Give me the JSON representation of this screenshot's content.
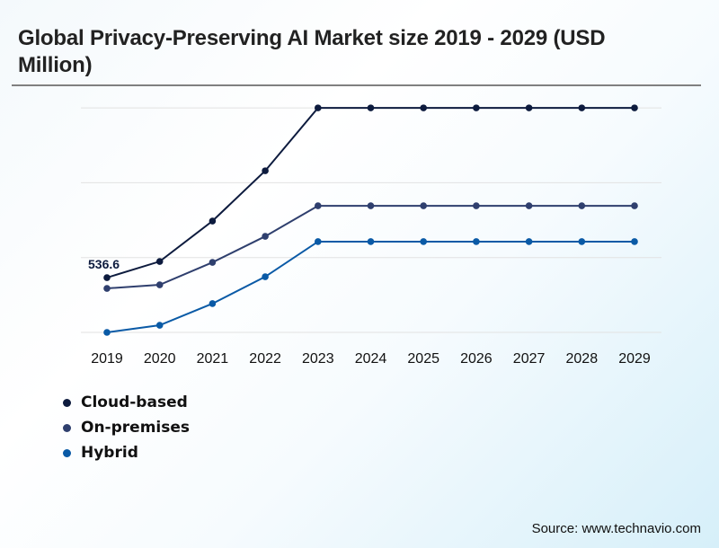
{
  "title": "Global Privacy-Preserving AI Market size 2019 - 2029 (USD Million)",
  "source": "Source: www.technavio.com",
  "chart_data": {
    "type": "line",
    "title": "Global Privacy-Preserving AI Market size 2019 - 2029 (USD Million)",
    "xlabel": "",
    "ylabel": "USD Million",
    "x": [
      "2019",
      "2020",
      "2021",
      "2022",
      "2023",
      "2024",
      "2025",
      "2026",
      "2027",
      "2028",
      "2029"
    ],
    "ylim": [
      0,
      2200
    ],
    "grid": true,
    "gridlines": [
      0,
      733,
      1466,
      2199
    ],
    "y_ticks_labeled": false,
    "legend_position": "bottom-left",
    "annotations": [
      {
        "series": "Cloud-based",
        "x": "2019",
        "text": "536.6"
      }
    ],
    "series": [
      {
        "name": "Cloud-based",
        "color": "#0d1b3e",
        "values": [
          536.6,
          695,
          1091,
          1583,
          2199,
          2199,
          2199,
          2199,
          2199,
          2199,
          2199
        ]
      },
      {
        "name": "On-premises",
        "color": "#2f3f6e",
        "values": [
          431,
          466,
          686,
          941,
          1240,
          1240,
          1240,
          1240,
          1240,
          1240,
          1240
        ]
      },
      {
        "name": "Hybrid",
        "color": "#0a5aa6",
        "values": [
          0,
          70,
          282,
          545,
          889,
          889,
          889,
          889,
          889,
          889,
          889
        ]
      }
    ]
  }
}
